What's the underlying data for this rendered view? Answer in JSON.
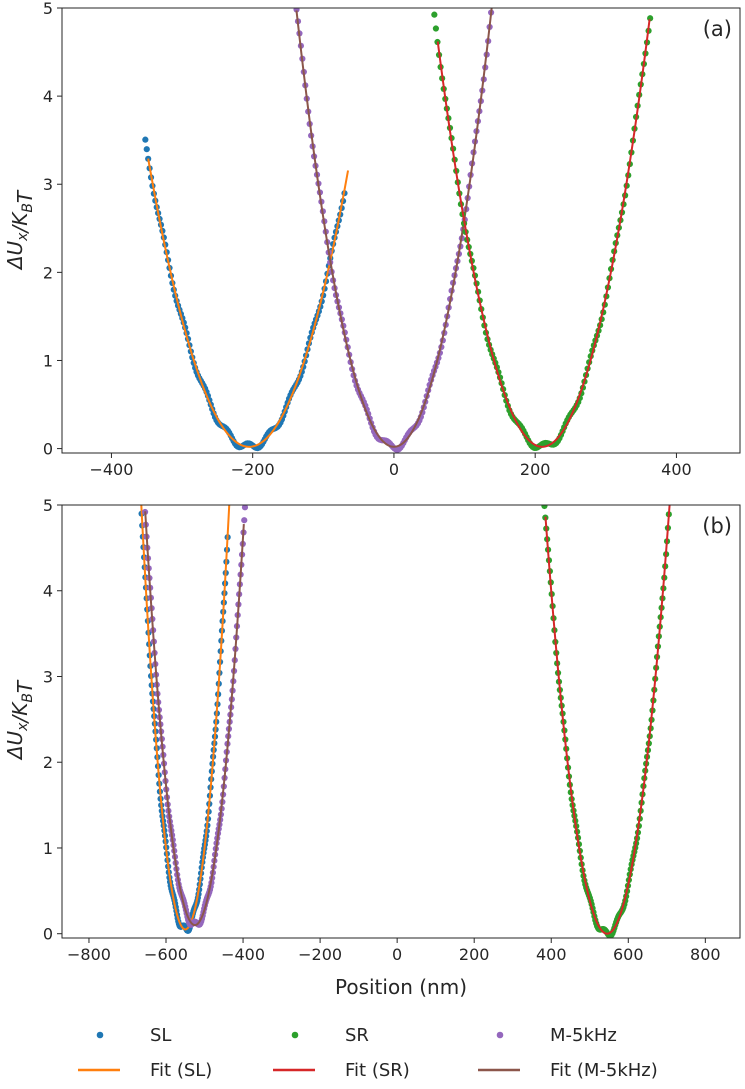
{
  "colors": {
    "SL": "#1f77b4",
    "SR": "#2ca02c",
    "M": "#9467bd",
    "fitSL": "#ff7f0e",
    "fitSR": "#d62728",
    "fitM": "#8c564b",
    "axis": "#262626"
  },
  "legend": {
    "entries": [
      {
        "label": "SL",
        "kind": "marker",
        "color_key": "SL"
      },
      {
        "label": "SR",
        "kind": "marker",
        "color_key": "SR"
      },
      {
        "label": "M-5kHz",
        "kind": "marker",
        "color_key": "M"
      },
      {
        "label": "Fit (SL)",
        "kind": "line",
        "color_key": "fitSL"
      },
      {
        "label": "Fit (SR)",
        "kind": "line",
        "color_key": "fitSR"
      },
      {
        "label": "Fit (M-5kHz)",
        "kind": "line",
        "color_key": "fitM"
      }
    ]
  },
  "chart_data": [
    {
      "type": "scatter",
      "panel_label": "(a)",
      "xlabel": "",
      "ylabel": "ΔU_x/K_BT",
      "xlim": [
        -470,
        490
      ],
      "ylim": [
        -0.05,
        5.0
      ],
      "xticks": [
        -400,
        -200,
        0,
        200,
        400
      ],
      "yticks": [
        0,
        1,
        2,
        3,
        4,
        5
      ],
      "series": [
        {
          "name": "SL",
          "color_key": "SL",
          "fit_color_key": "fitSL",
          "center": -205,
          "min": 0.02,
          "k": 0.00016,
          "data_range": [
            -352,
            -70
          ],
          "fit_range": [
            -348,
            -65
          ]
        },
        {
          "name": "M-5kHz",
          "color_key": "M",
          "fit_color_key": "fitM",
          "center": 0,
          "min": 0.02,
          "k": 0.00026,
          "data_range": [
            -140,
            150
          ],
          "fit_range": [
            -138,
            140
          ]
        },
        {
          "name": "SR",
          "color_key": "SR",
          "fit_color_key": "fitSR",
          "center": 210,
          "min": 0.02,
          "k": 0.00021,
          "data_range": [
            55,
            365
          ],
          "fit_range": [
            62,
            362
          ]
        }
      ]
    },
    {
      "type": "scatter",
      "panel_label": "(b)",
      "xlabel": "Position (nm)",
      "ylabel": "ΔU_x/K_BT",
      "xlim": [
        -870,
        890
      ],
      "ylim": [
        -0.05,
        5.0
      ],
      "xticks": [
        -800,
        -600,
        -400,
        -200,
        0,
        200,
        400,
        600,
        800
      ],
      "yticks": [
        0,
        1,
        2,
        3,
        4,
        5
      ],
      "series": [
        {
          "name": "SL",
          "color_key": "SL",
          "fit_color_key": "fitSL",
          "center": -550,
          "min": 0.05,
          "k": 0.00038,
          "data_range": [
            -670,
            -440
          ],
          "fit_range": [
            -665,
            -435
          ]
        },
        {
          "name": "M-5kHz",
          "color_key": "M",
          "fit_color_key": "fitM",
          "center": -525,
          "min": 0.1,
          "k": 0.00029,
          "data_range": [
            -660,
            -395
          ],
          "fit_range": [
            -654,
            -398
          ]
        },
        {
          "name": "SR",
          "color_key": "SR",
          "fit_color_key": "fitSR",
          "center": 545,
          "min": 0.0,
          "k": 0.00019,
          "data_range": [
            380,
            710
          ],
          "fit_range": [
            385,
            708
          ]
        }
      ]
    }
  ]
}
